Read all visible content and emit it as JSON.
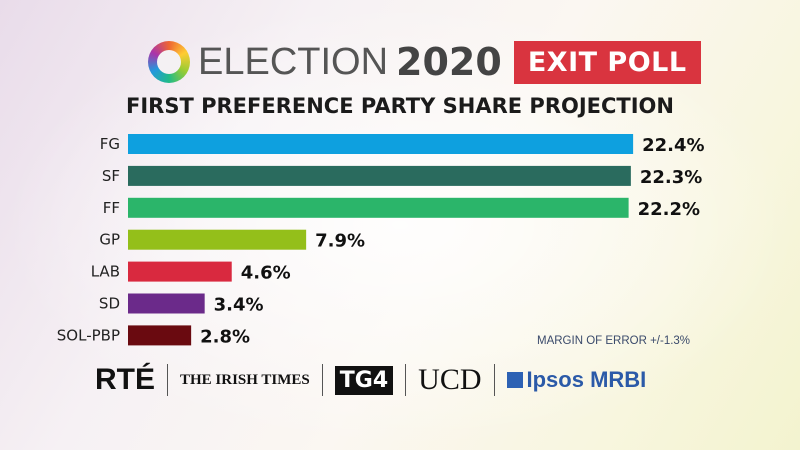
{
  "header": {
    "title_part1": "ELECTION",
    "title_part2": "2020",
    "badge": "EXIT POLL",
    "subtitle": "FIRST PREFERENCE PARTY SHARE PROJECTION"
  },
  "chart_data": {
    "type": "bar",
    "orientation": "horizontal",
    "title": "FIRST PREFERENCE PARTY SHARE PROJECTION",
    "categories": [
      "FG",
      "SF",
      "FF",
      "GP",
      "LAB",
      "SD",
      "SOL-PBP"
    ],
    "values": [
      22.4,
      22.3,
      22.2,
      7.9,
      4.6,
      3.4,
      2.8
    ],
    "labels": [
      "22.4%",
      "22.3%",
      "22.2%",
      "7.9%",
      "4.6%",
      "3.4%",
      "2.8%"
    ],
    "colors": [
      "#0ea0df",
      "#2a6b5e",
      "#2bb56a",
      "#94bf1a",
      "#d9293f",
      "#6b2a8a",
      "#6a0a10"
    ],
    "unit": "%",
    "grid": false,
    "annotation": "MARGIN OF ERROR +/-1.3%"
  },
  "footer": {
    "logos": [
      "RTÉ",
      "THE IRISH TIMES",
      "TG4",
      "UCD",
      "Ipsos MRBI"
    ]
  }
}
